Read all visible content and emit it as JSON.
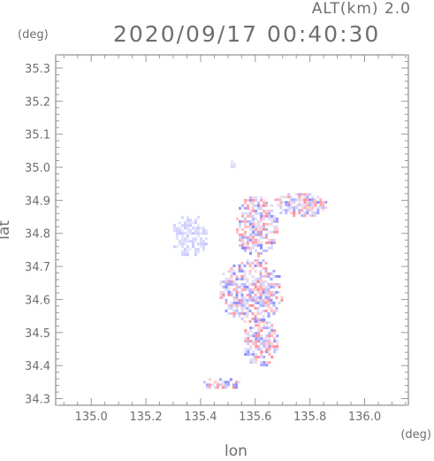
{
  "header": {
    "altitude_label": "ALT(km)  2.0",
    "datetime": "2020/09/17  00:40:30"
  },
  "axes": {
    "x_label": "lon",
    "x_unit": "(deg)",
    "y_label": "lat",
    "y_unit": "(deg)",
    "x_ticks": [
      "135.0",
      "135.2",
      "135.4",
      "135.6",
      "135.8",
      "136.0"
    ],
    "y_ticks": [
      "35.3",
      "35.2",
      "35.1",
      "35.0",
      "34.9",
      "34.8",
      "34.7",
      "34.6",
      "34.5",
      "34.4",
      "34.3"
    ]
  },
  "map_data": {
    "type": "radar-field",
    "lon_range": [
      134.87,
      136.16
    ],
    "lat_range": [
      34.28,
      35.34
    ],
    "x_tick_values": [
      135.0,
      135.2,
      135.4,
      135.6,
      135.8,
      136.0
    ],
    "y_tick_values": [
      35.3,
      35.2,
      35.1,
      35.0,
      34.9,
      34.8,
      34.7,
      34.6,
      34.5,
      34.4,
      34.3
    ],
    "colors": {
      "positive": "#ff6b7a",
      "negative": "#6b6bff",
      "neutral_lavender": "#c8c8f4",
      "axis": "#777777",
      "grid_tick": "#999999"
    },
    "echo_regions": [
      {
        "name": "western-lavender-patch",
        "lon": [
          135.29,
          135.43
        ],
        "lat": [
          34.73,
          34.86
        ],
        "style": "lavender"
      },
      {
        "name": "central-upper-strip",
        "lon": [
          135.52,
          135.68
        ],
        "lat": [
          34.73,
          34.92
        ],
        "style": "mixed"
      },
      {
        "name": "north-east-cluster",
        "lon": [
          135.66,
          135.86
        ],
        "lat": [
          34.85,
          34.93
        ],
        "style": "mixed"
      },
      {
        "name": "central-main-body",
        "lon": [
          135.46,
          135.7
        ],
        "lat": [
          34.53,
          34.73
        ],
        "style": "mixed"
      },
      {
        "name": "southern-tail",
        "lon": [
          135.55,
          135.68
        ],
        "lat": [
          34.4,
          34.55
        ],
        "style": "mixed"
      },
      {
        "name": "small-north-speck",
        "lon": [
          135.5,
          135.53
        ],
        "lat": [
          35.0,
          35.03
        ],
        "style": "lavender"
      },
      {
        "name": "far-south-specks",
        "lon": [
          135.4,
          135.55
        ],
        "lat": [
          34.33,
          34.37
        ],
        "style": "mixed"
      }
    ]
  }
}
